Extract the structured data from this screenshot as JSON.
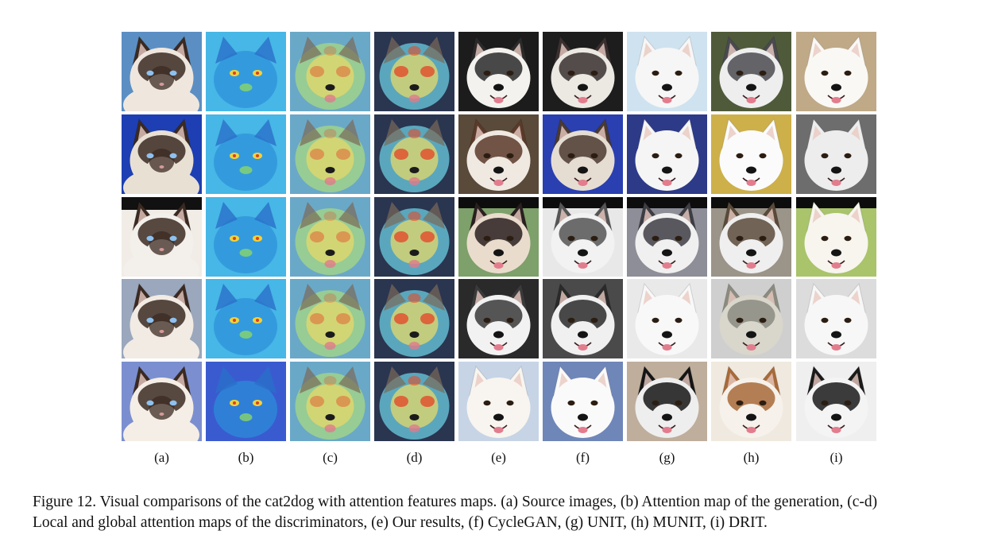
{
  "figure": {
    "column_labels": [
      "(a)",
      "(b)",
      "(c)",
      "(d)",
      "(e)",
      "(f)",
      "(g)",
      "(h)",
      "(i)"
    ],
    "rows": 5,
    "caption_lines": [
      "Figure 12. Visual comparisons of the cat2dog with attention features maps.  (a) Source images, (b) Attention map of the generation, (c-d)",
      "Local and global attention maps of the discriminators, (e) Our results, (f) CycleGAN, (g) UNIT, (h) MUNIT, (i) DRIT."
    ]
  }
}
